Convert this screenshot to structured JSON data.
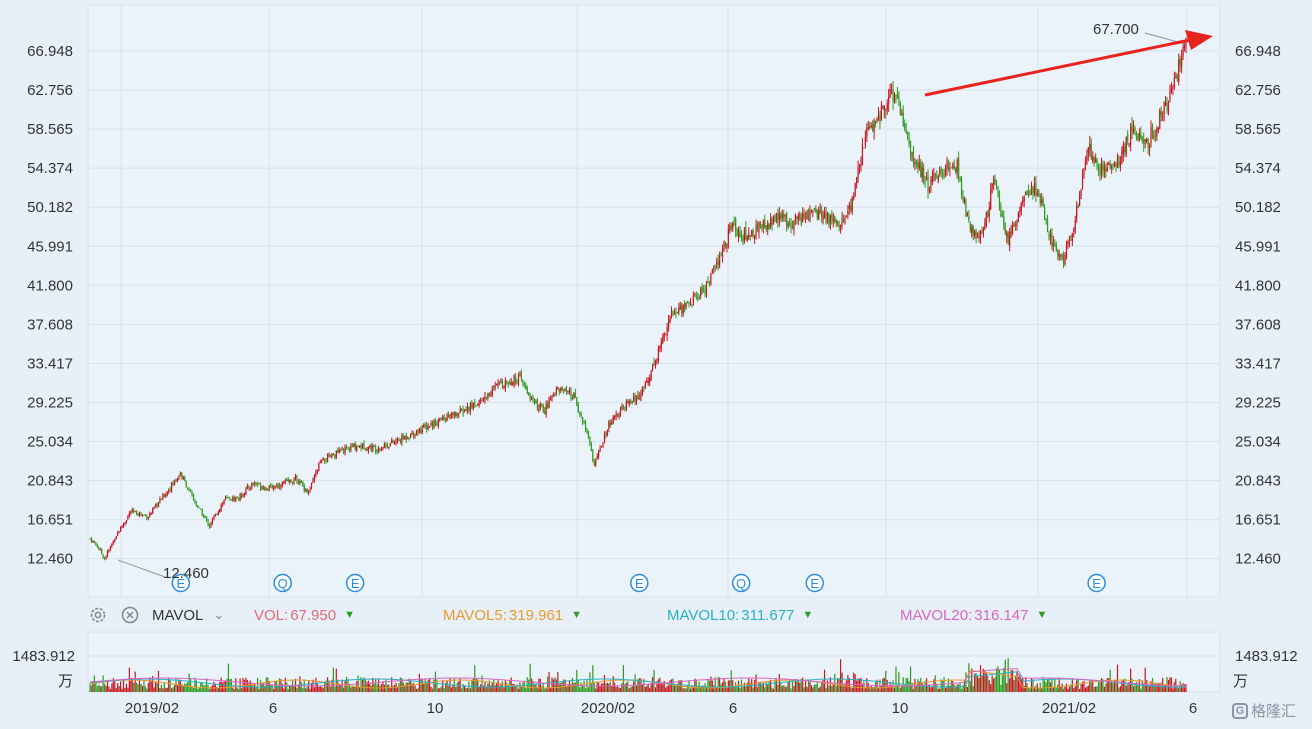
{
  "chart_data": {
    "type": "candlestick",
    "y_ticks": [
      "66.948",
      "62.756",
      "58.565",
      "54.374",
      "50.182",
      "45.991",
      "41.800",
      "37.608",
      "33.417",
      "29.225",
      "25.034",
      "20.843",
      "16.651",
      "12.460"
    ],
    "ylim": [
      10.5,
      70.0
    ],
    "x_ticks": [
      "2019/02",
      "6",
      "10",
      "2020/02",
      "6",
      "10",
      "2021/02",
      "6"
    ],
    "low_label": "12.460",
    "high_label": "67.700",
    "price_path": [
      [
        0,
        14.6
      ],
      [
        5,
        13.8
      ],
      [
        10,
        12.46
      ],
      [
        18,
        15.0
      ],
      [
        28,
        17.5
      ],
      [
        40,
        17.0
      ],
      [
        52,
        19.5
      ],
      [
        62,
        21.6
      ],
      [
        72,
        18.5
      ],
      [
        82,
        16.0
      ],
      [
        92,
        18.8
      ],
      [
        102,
        19.0
      ],
      [
        112,
        20.6
      ],
      [
        122,
        20.0
      ],
      [
        132,
        20.5
      ],
      [
        142,
        21.0
      ],
      [
        150,
        19.5
      ],
      [
        158,
        22.8
      ],
      [
        172,
        24.0
      ],
      [
        184,
        24.6
      ],
      [
        196,
        24.3
      ],
      [
        210,
        25.0
      ],
      [
        225,
        26.2
      ],
      [
        240,
        27.3
      ],
      [
        255,
        28.2
      ],
      [
        270,
        29.6
      ],
      [
        282,
        31.4
      ],
      [
        295,
        31.8
      ],
      [
        305,
        29.0
      ],
      [
        312,
        28.4
      ],
      [
        320,
        30.8
      ],
      [
        332,
        29.8
      ],
      [
        342,
        25.6
      ],
      [
        346,
        22.5
      ],
      [
        356,
        26.8
      ],
      [
        368,
        29.0
      ],
      [
        378,
        30.0
      ],
      [
        388,
        33.8
      ],
      [
        398,
        38.5
      ],
      [
        412,
        40.0
      ],
      [
        422,
        41.5
      ],
      [
        432,
        44.5
      ],
      [
        440,
        48.3
      ],
      [
        450,
        47.0
      ],
      [
        462,
        48.2
      ],
      [
        472,
        49.0
      ],
      [
        482,
        48.6
      ],
      [
        492,
        49.3
      ],
      [
        502,
        49.5
      ],
      [
        512,
        48.4
      ],
      [
        522,
        49.8
      ],
      [
        532,
        58.0
      ],
      [
        542,
        60.0
      ],
      [
        550,
        62.3
      ],
      [
        556,
        60.5
      ],
      [
        565,
        55.4
      ],
      [
        575,
        52.5
      ],
      [
        585,
        54.0
      ],
      [
        595,
        54.5
      ],
      [
        604,
        47.5
      ],
      [
        612,
        47.0
      ],
      [
        620,
        53.0
      ],
      [
        630,
        46.5
      ],
      [
        640,
        51.0
      ],
      [
        650,
        52.2
      ],
      [
        660,
        46.5
      ],
      [
        668,
        44.5
      ],
      [
        675,
        48.0
      ],
      [
        685,
        56.5
      ],
      [
        695,
        54.0
      ],
      [
        705,
        55.0
      ],
      [
        715,
        58.5
      ],
      [
        725,
        57.0
      ],
      [
        735,
        60.0
      ],
      [
        743,
        62.5
      ],
      [
        748,
        66.0
      ],
      [
        752,
        67.7
      ]
    ],
    "volume_max_label": "1483.912",
    "volume_unit": "万",
    "event_markers": [
      {
        "label": "E",
        "x_ref": 0.082
      },
      {
        "label": "Q",
        "x_ref": 0.172
      },
      {
        "label": "E",
        "x_ref": 0.236
      },
      {
        "label": "E",
        "x_ref": 0.487
      },
      {
        "label": "Q",
        "x_ref": 0.577
      },
      {
        "label": "E",
        "x_ref": 0.642
      },
      {
        "label": "E",
        "x_ref": 0.891
      }
    ],
    "indicators": {
      "name": "MAVOL",
      "vol": {
        "label": "VOL:",
        "value": "67.950",
        "color": "#e26b75"
      },
      "mavol5": {
        "label": "MAVOL5:",
        "value": "319.961",
        "color": "#e89a2c"
      },
      "mavol10": {
        "label": "MAVOL10:",
        "value": "311.677",
        "color": "#2ab0c4"
      },
      "mavol20": {
        "label": "MAVOL20:",
        "value": "316.147",
        "color": "#d966c0"
      }
    },
    "colors": {
      "up": "#c8171f",
      "down": "#2e9b1f",
      "arrow": "#e8231d",
      "grid": "#d5e2ee"
    },
    "watermark": "格隆汇"
  }
}
